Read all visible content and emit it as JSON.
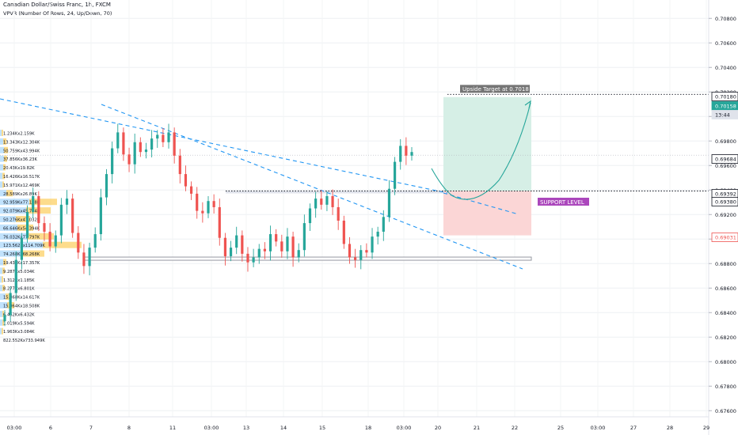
{
  "header": {
    "symbol_title": "Canadian Dollar/Swiss Franc, 1h, FXCM",
    "indicator_title": "VPVR (Number Of Rows, 24, Up/Down, 70)"
  },
  "colors": {
    "up": "#26a69a",
    "down": "#ef5350",
    "trendline": "#2196f3",
    "target_zone": "#d6efe6",
    "stop_zone": "#fbd6d6",
    "profile_up": "#2196f3",
    "profile_down": "#fbc02d",
    "support_label": "#ab47bc"
  },
  "chart_data": {
    "type": "candlestick",
    "x_axis": {
      "tick_labels": [
        "03:00",
        "6",
        "7",
        "8",
        "11",
        "03:00",
        "13",
        "14",
        "15",
        "18",
        "03:00",
        "20",
        "21",
        "22",
        "25",
        "03:00",
        "27",
        "28",
        "29"
      ]
    },
    "y_axis": {
      "range": [
        0.6755,
        0.7095
      ],
      "tick_labels": [
        "0.70800",
        "0.70600",
        "0.70400",
        "0.70200",
        "0.70000",
        "0.69800",
        "0.69600",
        "0.69400",
        "0.69200",
        "0.69000",
        "0.68800",
        "0.68600",
        "0.68400",
        "0.68200",
        "0.68000",
        "0.67800",
        "0.67600"
      ]
    },
    "price_badges": [
      {
        "label": "0.70180",
        "style": "white"
      },
      {
        "label": "0.70158",
        "style": "green"
      },
      {
        "label": "13:44",
        "style": "gray"
      },
      {
        "label": "0.69684",
        "style": "white"
      },
      {
        "label": "0.69392",
        "style": "white"
      },
      {
        "label": "0.69380",
        "style": "white"
      },
      {
        "label": "0.69031",
        "style": "red"
      }
    ],
    "close_series": [
      0.6838,
      0.6856,
      0.6883,
      0.6901,
      0.6922,
      0.6935,
      0.6913,
      0.6906,
      0.6894,
      0.6903,
      0.6928,
      0.6933,
      0.6905,
      0.6889,
      0.6878,
      0.6893,
      0.6904,
      0.6934,
      0.6953,
      0.6974,
      0.6987,
      0.6969,
      0.6961,
      0.6979,
      0.6971,
      0.6973,
      0.6982,
      0.6985,
      0.6979,
      0.6987,
      0.6968,
      0.6953,
      0.6943,
      0.6937,
      0.6923,
      0.6921,
      0.6931,
      0.6926,
      0.6901,
      0.6886,
      0.6893,
      0.6903,
      0.6888,
      0.6881,
      0.6885,
      0.6892,
      0.689,
      0.6904,
      0.6898,
      0.689,
      0.6902,
      0.6885,
      0.6891,
      0.6913,
      0.6925,
      0.6933,
      0.6928,
      0.6935,
      0.6926,
      0.6915,
      0.6896,
      0.6885,
      0.6883,
      0.6891,
      0.6889,
      0.6902,
      0.6906,
      0.6918,
      0.6941,
      0.6963,
      0.6976,
      0.6968,
      0.6971
    ],
    "volume_profile": [
      "1.234Kx2.159K",
      "13.343Kx12.304K",
      "50.759Kx43.994K",
      "37.856Kx36.23K",
      "20.43Kx19.82K",
      "16.426Kx16.517K",
      "15.971Kx12.469K",
      "28.589Kx26.89K",
      "92.959Kx77.178K",
      "92.079Kx45.774K",
      "50.276Kx47.032K",
      "66.646Kx54.394K",
      "76.032Kx77.797K",
      "123.562Kx114.709K",
      "74.268Kx68.268K",
      "19.434Kx17.357K",
      "9.287Kx5.034K",
      "1.312Kx1.185K",
      "8.277Kx6.801K",
      "15.868Kx14.617K",
      "15.964Kx18.508K",
      "6.462Kx6.432K",
      "1.019Kx5.594K",
      "1.963Kx3.084K",
      "822.552Kx733.949K"
    ],
    "annotations": {
      "target_label": "Upside Target at 0.7018",
      "support_label": "SUPPORT LEVEL",
      "target_price": 0.7018,
      "support_price": 0.6938
    }
  }
}
